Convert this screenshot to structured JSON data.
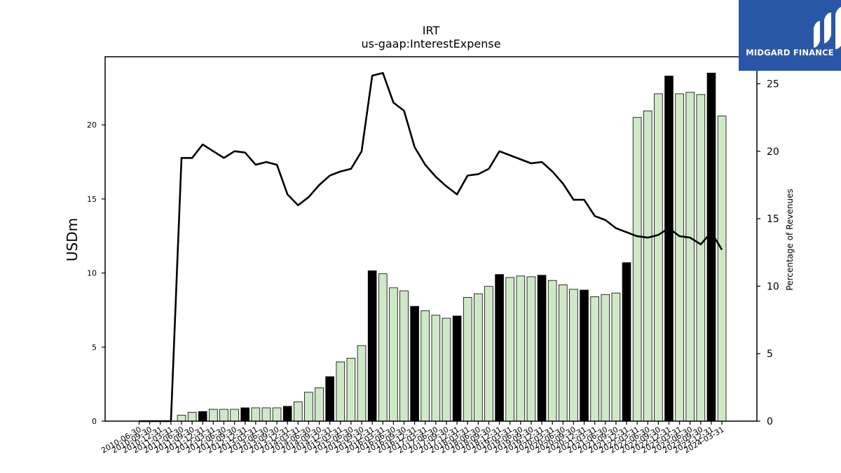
{
  "brand": {
    "name": "MIDGARD FINANCE",
    "color": "#2a56a8"
  },
  "chart_data": {
    "type": "bar",
    "title": "IRT",
    "subtitle": "us-gaap:InterestExpense",
    "ylabel": "USDm",
    "ylabel_right": "Percentage of Revenues",
    "ylim": [
      0,
      24.6
    ],
    "ylim_right": [
      0,
      27
    ],
    "yticks": [
      0,
      5,
      10,
      15,
      20
    ],
    "yticks_right": [
      0,
      5,
      10,
      15,
      20,
      25
    ],
    "grid": false,
    "legend": "none",
    "colors": {
      "quarter_bar": "#cfe8c7",
      "annual_bar": "#000000",
      "line": "#000000"
    },
    "categories": [
      "2010-06-30",
      "2010-09-30",
      "2010-12-31",
      "2011-03-31",
      "2011-06-30",
      "2011-09-30",
      "2011-12-31",
      "2012-03-31",
      "2012-06-30",
      "2012-09-30",
      "2012-12-31",
      "2013-03-31",
      "2013-06-30",
      "2013-09-30",
      "2013-12-31",
      "2014-03-31",
      "2014-06-30",
      "2014-09-30",
      "2014-12-31",
      "2015-03-31",
      "2015-06-30",
      "2015-09-30",
      "2015-12-31",
      "2016-03-31",
      "2016-06-30",
      "2016-09-30",
      "2016-12-31",
      "2017-03-31",
      "2017-06-30",
      "2017-09-30",
      "2017-12-31",
      "2018-03-31",
      "2018-06-30",
      "2018-09-30",
      "2018-12-31",
      "2019-03-31",
      "2019-06-30",
      "2019-09-30",
      "2019-12-31",
      "2020-03-31",
      "2020-06-30",
      "2020-09-30",
      "2020-12-31",
      "2021-03-31",
      "2021-06-30",
      "2021-09-30",
      "2021-12-31",
      "2022-03-31",
      "2022-06-30",
      "2022-09-30",
      "2022-12-31",
      "2023-03-31",
      "2023-06-30",
      "2023-09-30",
      "2023-12-31",
      "2024-03-31"
    ],
    "tick_labels_shown": [
      "2010-06-30",
      "2010-09-30",
      "2010-12-31",
      "2011-03-31",
      "2011-06-30",
      "2011-09-30",
      "2011-12-31",
      "2012-03-31",
      "2012-06-30",
      "2012-09-30",
      "2012-12-31",
      "2013-03-31",
      "2013-06-30",
      "2013-09-30",
      "2013-12-31",
      "2014-03-31",
      "2014-06-30",
      "2014-09-30",
      "2014-12-31",
      "2015-03-31",
      "2015-06-30",
      "2015-09-30",
      "2015-12-31",
      "2016-03-31",
      "2016-06-30",
      "2016-09-30",
      "2016-12-31",
      "2017-03-31",
      "2017-06-30",
      "2017-09-30",
      "2017-12-31",
      "2018-03-31",
      "2018-06-30",
      "2018-09-30",
      "2018-12-31",
      "2019-03-31",
      "2019-06-30",
      "2019-09-30",
      "2019-12-31",
      "2020-03-31",
      "2020-06-30",
      "2020-09-30",
      "2020-12-31",
      "2021-03-31",
      "2021-06-30",
      "2021-09-30",
      "2021-12-31",
      "2022-03-31",
      "2022-06-30",
      "2022-09-30",
      "2022-12-31",
      "2023-03-31",
      "2023-06-30",
      "2023-09-30",
      "2023-12-31",
      "2024-03-31"
    ],
    "series": [
      {
        "type": "bar",
        "axis": "left",
        "values": [
          0,
          0,
          0,
          0,
          0.4,
          0.6,
          0.65,
          0.8,
          0.8,
          0.8,
          0.9,
          0.9,
          0.9,
          0.9,
          1.0,
          1.3,
          1.95,
          2.25,
          3.0,
          4.0,
          4.25,
          5.1,
          10.15,
          9.95,
          9.0,
          8.8,
          7.75,
          7.45,
          7.15,
          6.95,
          7.1,
          8.35,
          8.6,
          9.1,
          9.9,
          9.7,
          9.8,
          9.75,
          9.85,
          9.5,
          9.2,
          8.9,
          8.85,
          8.4,
          8.55,
          8.65,
          10.7,
          20.5,
          20.95,
          22.1,
          23.3,
          22.1,
          22.2,
          22.05,
          23.5,
          20.6
        ],
        "annual": [
          false,
          false,
          false,
          false,
          false,
          false,
          true,
          false,
          false,
          false,
          true,
          false,
          false,
          false,
          true,
          false,
          false,
          false,
          true,
          false,
          false,
          false,
          true,
          false,
          false,
          false,
          true,
          false,
          false,
          false,
          true,
          false,
          false,
          false,
          true,
          false,
          false,
          false,
          true,
          false,
          false,
          false,
          true,
          false,
          false,
          false,
          true,
          false,
          false,
          false,
          true,
          false,
          false,
          false,
          true,
          false
        ]
      },
      {
        "type": "line",
        "axis": "right",
        "values": [
          0,
          0,
          0,
          0,
          19.5,
          19.5,
          20.5,
          20.0,
          19.5,
          20.0,
          19.9,
          19.0,
          19.2,
          19.0,
          16.8,
          16.0,
          16.6,
          17.5,
          18.2,
          18.5,
          18.7,
          20.0,
          25.6,
          25.8,
          23.6,
          23.0,
          20.3,
          19.0,
          18.1,
          17.4,
          16.8,
          18.2,
          18.3,
          18.7,
          20.0,
          19.7,
          19.4,
          19.1,
          19.2,
          18.5,
          17.6,
          16.4,
          16.4,
          15.2,
          14.9,
          14.3,
          14.0,
          13.7,
          13.6,
          13.8,
          14.3,
          13.7,
          13.6,
          13.1,
          14.0,
          12.7
        ]
      }
    ]
  }
}
